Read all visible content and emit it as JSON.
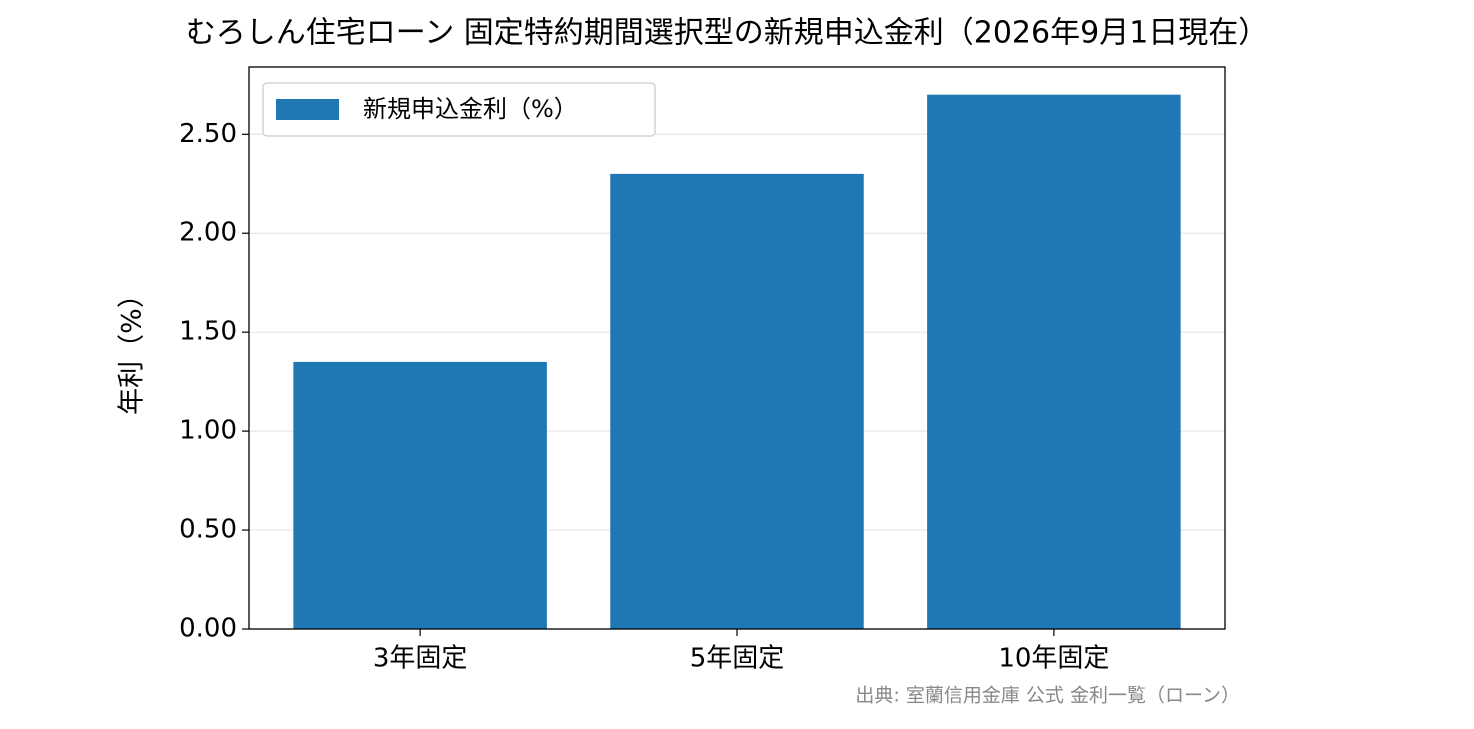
{
  "chart_data": {
    "type": "bar",
    "title": "むろしん住宅ローン 固定特約期間選択型の新規申込金利（2026年9月1日現在）",
    "ylabel": "年利（%）",
    "source": "出典: 室蘭信用金庫 公式 金利一覧（ローン）",
    "categories": [
      "3年固定",
      "5年固定",
      "10年固定"
    ],
    "series": [
      {
        "name": "新規申込金利（%）",
        "color": "#1f77b4",
        "values": [
          1.35,
          2.3,
          2.7
        ]
      }
    ],
    "ylim": [
      0,
      2.84
    ],
    "yticks": [
      {
        "value": 0,
        "label": "0.00"
      },
      {
        "value": 0.5,
        "label": "0.50"
      },
      {
        "value": 1,
        "label": "1.00"
      },
      {
        "value": 1.5,
        "label": "1.50"
      },
      {
        "value": 2,
        "label": "2.00"
      },
      {
        "value": 2.5,
        "label": "2.50"
      }
    ],
    "grid": true,
    "legend": "upper left"
  }
}
